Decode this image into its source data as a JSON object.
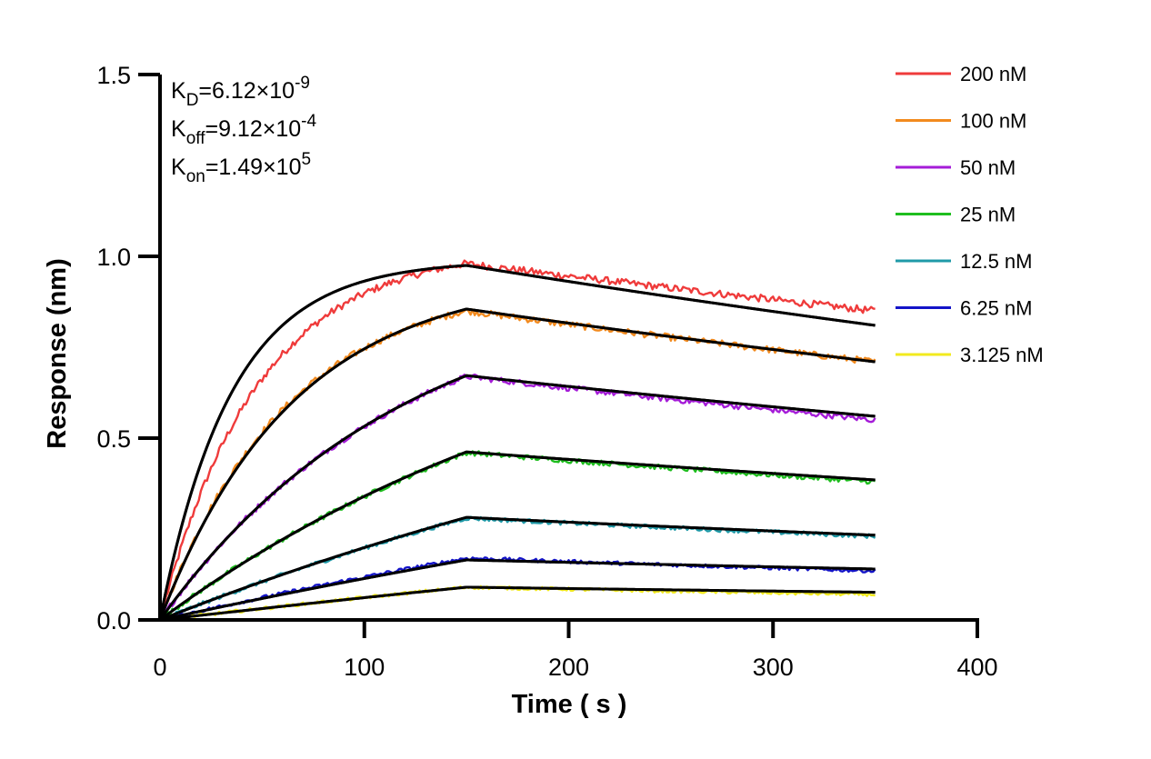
{
  "chart_data": {
    "type": "line",
    "title": "",
    "xlabel": "Time ( s )",
    "ylabel": "Response (nm)",
    "xlim": [
      0,
      400
    ],
    "ylim": [
      0,
      1.5
    ],
    "x_ticks": [
      "0",
      "100",
      "200",
      "300",
      "400"
    ],
    "y_ticks": [
      "0.0",
      "0.5",
      "1.0",
      "1.5"
    ],
    "x_tick_values": [
      0,
      100,
      200,
      300,
      400
    ],
    "y_tick_values": [
      0,
      0.5,
      1.0,
      1.5
    ],
    "grid": false,
    "legend_position": "top-right",
    "annotations": [
      {
        "base": "K",
        "sub": "D",
        "eq": "=6.12×10",
        "sup": "-9"
      },
      {
        "base": "K",
        "sub": "off",
        "eq": "=9.12×10",
        "sup": "-4"
      },
      {
        "base": "K",
        "sub": "on",
        "eq": "=1.49×10",
        "sup": "5"
      }
    ],
    "association_end_time": 150,
    "end_time": 350,
    "series": [
      {
        "name": "200 nM",
        "color": "#ef3b3b",
        "measured_peak": 0.98,
        "measured_end": 0.85,
        "fit_peak": 0.975,
        "fit_end": 0.81,
        "fit_tau": 35,
        "data_tau": 48,
        "data_x": [
          0,
          10,
          20,
          30,
          40,
          50,
          60,
          70,
          80,
          90,
          100,
          110,
          120,
          130,
          140,
          150,
          160,
          170,
          180,
          190,
          200,
          210,
          220,
          230,
          240,
          250,
          260,
          270,
          280,
          290,
          300,
          310,
          320,
          330,
          340,
          350
        ],
        "data_y": [
          0.0,
          0.19,
          0.34,
          0.46,
          0.57,
          0.65,
          0.72,
          0.78,
          0.83,
          0.87,
          0.9,
          0.93,
          0.95,
          0.96,
          0.97,
          0.98,
          0.98,
          0.97,
          0.96,
          0.95,
          0.94,
          0.93,
          0.92,
          0.91,
          0.9,
          0.9,
          0.89,
          0.88,
          0.88,
          0.87,
          0.87,
          0.87,
          0.86,
          0.86,
          0.86,
          0.85
        ]
      },
      {
        "name": "100 nM",
        "color": "#f28a1e",
        "measured_peak": 0.85,
        "measured_end": 0.71,
        "fit_peak": 0.855,
        "fit_end": 0.71,
        "fit_tau": 65,
        "data_tau": 62,
        "data_x": [
          0,
          10,
          20,
          30,
          40,
          50,
          60,
          70,
          80,
          90,
          100,
          110,
          120,
          130,
          140,
          150,
          160,
          170,
          180,
          190,
          200,
          210,
          220,
          230,
          240,
          250,
          260,
          270,
          280,
          290,
          300,
          310,
          320,
          330,
          340,
          350
        ],
        "data_y": [
          0.0,
          0.13,
          0.25,
          0.35,
          0.44,
          0.52,
          0.59,
          0.64,
          0.69,
          0.73,
          0.76,
          0.79,
          0.81,
          0.83,
          0.84,
          0.85,
          0.84,
          0.83,
          0.82,
          0.81,
          0.8,
          0.79,
          0.78,
          0.77,
          0.77,
          0.76,
          0.75,
          0.75,
          0.74,
          0.74,
          0.73,
          0.73,
          0.72,
          0.72,
          0.71,
          0.71
        ]
      },
      {
        "name": "50 nM",
        "color": "#a51cd8",
        "measured_peak": 0.67,
        "measured_end": 0.55,
        "fit_peak": 0.672,
        "fit_end": 0.56,
        "fit_tau": 120,
        "data_tau": 118,
        "data_x": [
          0,
          10,
          20,
          30,
          40,
          50,
          60,
          70,
          80,
          90,
          100,
          110,
          120,
          130,
          140,
          150,
          160,
          170,
          180,
          190,
          200,
          210,
          220,
          230,
          240,
          250,
          260,
          270,
          280,
          290,
          300,
          310,
          320,
          330,
          340,
          350
        ],
        "data_y": [
          0.0,
          0.07,
          0.14,
          0.2,
          0.26,
          0.32,
          0.37,
          0.42,
          0.46,
          0.5,
          0.54,
          0.57,
          0.61,
          0.63,
          0.65,
          0.67,
          0.66,
          0.65,
          0.64,
          0.63,
          0.63,
          0.62,
          0.61,
          0.61,
          0.6,
          0.6,
          0.59,
          0.59,
          0.58,
          0.58,
          0.57,
          0.57,
          0.56,
          0.56,
          0.56,
          0.55
        ]
      },
      {
        "name": "25 nM",
        "color": "#1fbe1f",
        "measured_peak": 0.46,
        "measured_end": 0.38,
        "fit_peak": 0.462,
        "fit_end": 0.385,
        "fit_tau": 230,
        "data_tau": 225,
        "data_x": [
          0,
          10,
          20,
          30,
          40,
          50,
          60,
          70,
          80,
          90,
          100,
          110,
          120,
          130,
          140,
          150,
          160,
          170,
          180,
          190,
          200,
          210,
          220,
          230,
          240,
          250,
          260,
          270,
          280,
          290,
          300,
          310,
          320,
          330,
          340,
          350
        ],
        "data_y": [
          0.0,
          0.04,
          0.08,
          0.11,
          0.15,
          0.18,
          0.21,
          0.25,
          0.28,
          0.31,
          0.33,
          0.36,
          0.39,
          0.41,
          0.44,
          0.46,
          0.46,
          0.45,
          0.44,
          0.43,
          0.43,
          0.42,
          0.42,
          0.41,
          0.41,
          0.4,
          0.4,
          0.4,
          0.39,
          0.39,
          0.39,
          0.39,
          0.38,
          0.38,
          0.38,
          0.38
        ]
      },
      {
        "name": "12.5 nM",
        "color": "#1f9aa8",
        "measured_peak": 0.28,
        "measured_end": 0.23,
        "fit_peak": 0.282,
        "fit_end": 0.233,
        "fit_tau": 420,
        "data_tau": 410,
        "data_x": [
          0,
          10,
          20,
          30,
          40,
          50,
          60,
          70,
          80,
          90,
          100,
          110,
          120,
          130,
          140,
          150,
          160,
          170,
          180,
          190,
          200,
          210,
          220,
          230,
          240,
          250,
          260,
          270,
          280,
          290,
          300,
          310,
          320,
          330,
          340,
          350
        ],
        "data_y": [
          0.0,
          0.02,
          0.04,
          0.06,
          0.08,
          0.1,
          0.12,
          0.14,
          0.15,
          0.17,
          0.19,
          0.21,
          0.23,
          0.25,
          0.26,
          0.28,
          0.28,
          0.27,
          0.27,
          0.27,
          0.26,
          0.26,
          0.26,
          0.26,
          0.25,
          0.25,
          0.25,
          0.25,
          0.24,
          0.24,
          0.24,
          0.24,
          0.24,
          0.23,
          0.23,
          0.23
        ]
      },
      {
        "name": "6.25 nM",
        "color": "#1414c8",
        "measured_peak": 0.17,
        "measured_end": 0.135,
        "fit_peak": 0.165,
        "fit_end": 0.14,
        "fit_tau": 700,
        "data_tau": 600,
        "data_x": [
          0,
          10,
          20,
          30,
          40,
          50,
          60,
          70,
          80,
          90,
          100,
          110,
          120,
          130,
          140,
          150,
          160,
          170,
          180,
          190,
          200,
          210,
          220,
          230,
          240,
          250,
          260,
          270,
          280,
          290,
          300,
          310,
          320,
          330,
          340,
          350
        ],
        "data_y": [
          0.0,
          0.01,
          0.03,
          0.04,
          0.05,
          0.06,
          0.07,
          0.08,
          0.09,
          0.1,
          0.11,
          0.12,
          0.14,
          0.15,
          0.16,
          0.17,
          0.17,
          0.16,
          0.16,
          0.16,
          0.16,
          0.16,
          0.15,
          0.15,
          0.15,
          0.15,
          0.15,
          0.15,
          0.14,
          0.14,
          0.14,
          0.14,
          0.14,
          0.14,
          0.14,
          0.135
        ]
      },
      {
        "name": "3.125 nM",
        "color": "#f2ea1e",
        "measured_peak": 0.09,
        "measured_end": 0.07,
        "fit_peak": 0.09,
        "fit_end": 0.076,
        "fit_tau": 1200,
        "data_tau": 1000,
        "data_x": [
          0,
          10,
          20,
          30,
          40,
          50,
          60,
          70,
          80,
          90,
          100,
          110,
          120,
          130,
          140,
          150,
          160,
          170,
          180,
          190,
          200,
          210,
          220,
          230,
          240,
          250,
          260,
          270,
          280,
          290,
          300,
          310,
          320,
          330,
          340,
          350
        ],
        "data_y": [
          0.0,
          0.01,
          0.01,
          0.02,
          0.03,
          0.03,
          0.04,
          0.05,
          0.05,
          0.06,
          0.06,
          0.07,
          0.08,
          0.08,
          0.09,
          0.09,
          0.09,
          0.09,
          0.09,
          0.09,
          0.09,
          0.08,
          0.08,
          0.08,
          0.08,
          0.08,
          0.08,
          0.08,
          0.08,
          0.08,
          0.08,
          0.07,
          0.07,
          0.07,
          0.07,
          0.07
        ]
      }
    ]
  }
}
